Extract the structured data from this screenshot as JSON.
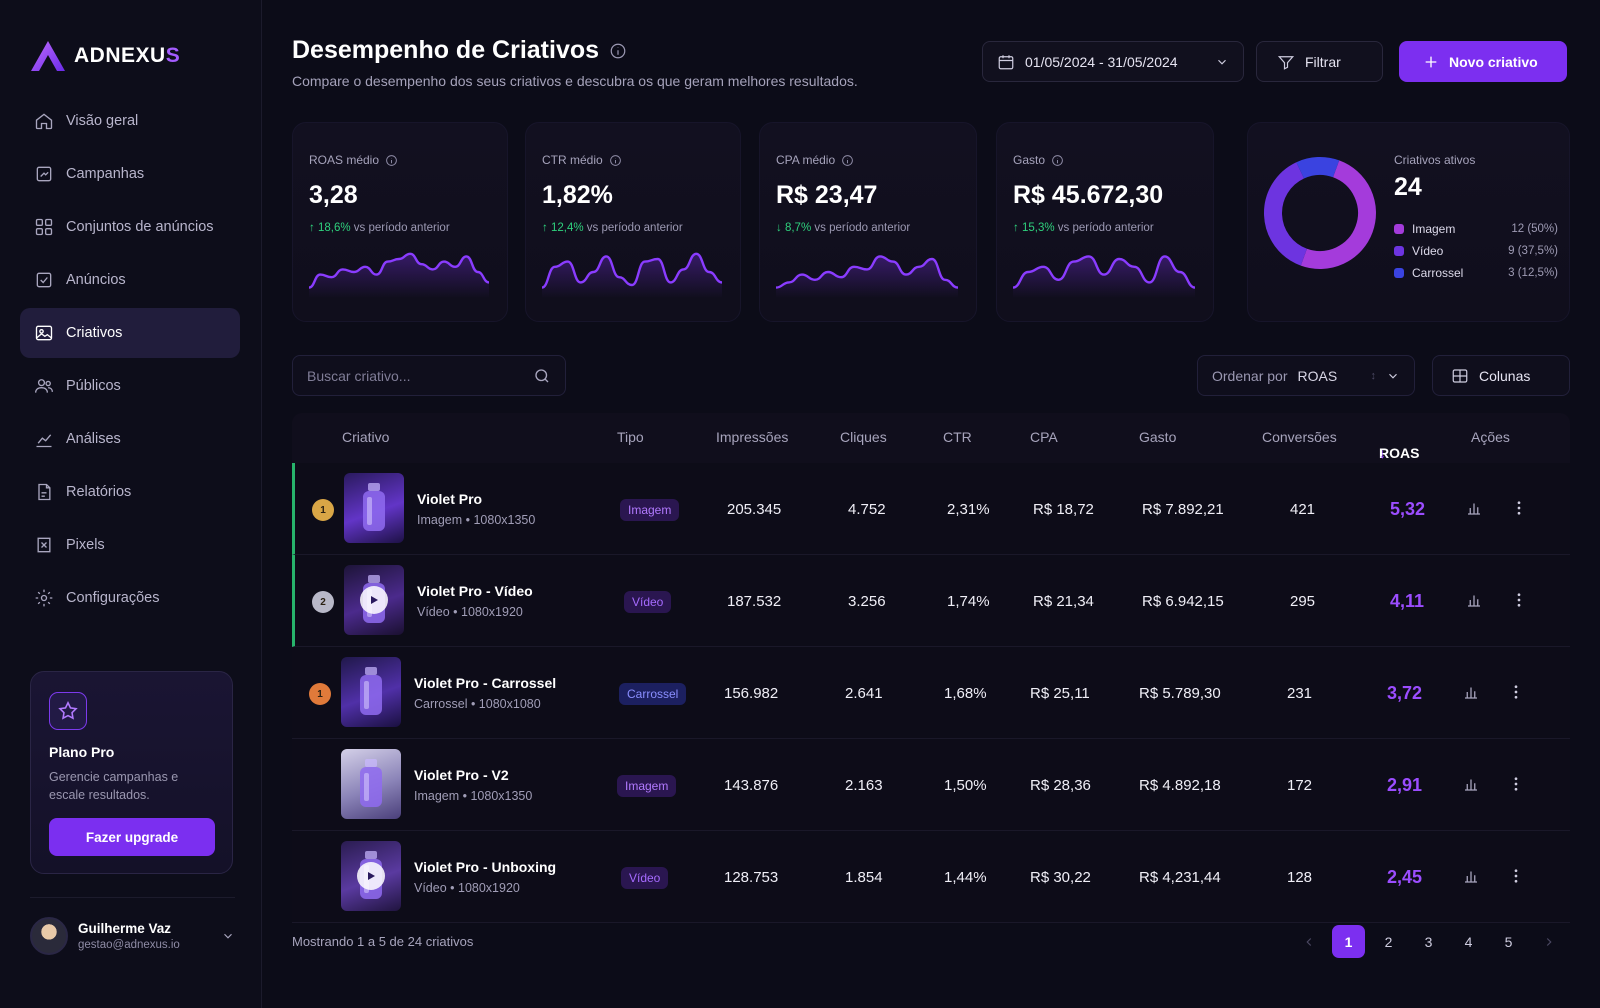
{
  "brand": {
    "name_main": "ADNEXU",
    "name_accent": "S"
  },
  "nav": [
    {
      "label": "Visão geral",
      "icon": "home-icon",
      "active": false
    },
    {
      "label": "Campanhas",
      "icon": "campaign-icon",
      "active": false
    },
    {
      "label": "Conjuntos de anúncios",
      "icon": "adsets-icon",
      "active": false
    },
    {
      "label": "Anúncios",
      "icon": "ads-icon",
      "active": false
    },
    {
      "label": "Criativos",
      "icon": "image-icon",
      "active": true
    },
    {
      "label": "Públicos",
      "icon": "users-icon",
      "active": false
    },
    {
      "label": "Análises",
      "icon": "chart-icon",
      "active": false
    },
    {
      "label": "Relatórios",
      "icon": "report-icon",
      "active": false
    },
    {
      "label": "Pixels",
      "icon": "pixel-icon",
      "active": false
    },
    {
      "label": "Configurações",
      "icon": "gear-icon",
      "active": false
    }
  ],
  "promo": {
    "title": "Plano Pro",
    "desc": "Gerencie campanhas e escale resultados.",
    "button": "Fazer upgrade"
  },
  "profile": {
    "name": "Guilherme Vaz",
    "email": "gestao@adnexus.io"
  },
  "header": {
    "title": "Desempenho de Criativos",
    "subtitle": "Compare o desempenho dos seus criativos e descubra os que geram melhores resultados.",
    "date_range": "01/05/2024 - 31/05/2024",
    "filter_label": "Filtrar",
    "new_label": "Novo criativo"
  },
  "kpis": [
    {
      "label": "ROAS médio",
      "value": "3,28",
      "delta": "18,6%",
      "dir": "up",
      "vs": "vs período anterior",
      "spark": [
        0.2,
        0.45,
        0.4,
        0.55,
        0.5,
        0.6,
        0.45,
        0.7,
        0.75,
        0.85,
        0.65,
        0.55,
        0.7,
        0.6,
        0.8,
        0.5,
        0.3
      ]
    },
    {
      "label": "CTR médio",
      "value": "1,82%",
      "delta": "12,4%",
      "dir": "up",
      "vs": "vs período anterior",
      "spark": [
        0.2,
        0.6,
        0.7,
        0.3,
        0.5,
        0.8,
        0.4,
        0.25,
        0.7,
        0.75,
        0.3,
        0.55,
        0.85,
        0.5,
        0.3
      ]
    },
    {
      "label": "CPA médio",
      "value": "R$ 23,47",
      "delta": "8,7%",
      "dir": "down",
      "vs": "vs período anterior",
      "spark": [
        0.2,
        0.3,
        0.45,
        0.35,
        0.5,
        0.4,
        0.6,
        0.55,
        0.8,
        0.7,
        0.45,
        0.6,
        0.75,
        0.35,
        0.2
      ]
    },
    {
      "label": "Gasto",
      "value": "R$ 45.672,30",
      "delta": "15,3%",
      "dir": "up",
      "vs": "vs período anterior",
      "spark": [
        0.2,
        0.5,
        0.6,
        0.35,
        0.7,
        0.8,
        0.45,
        0.75,
        0.6,
        0.3,
        0.8,
        0.5,
        0.2
      ]
    }
  ],
  "creatives_active": {
    "label": "Criativos ativos",
    "value": "24",
    "items": [
      {
        "label": "Imagem",
        "count": 12,
        "pct": "12 (50%)",
        "color": "#a43bdb"
      },
      {
        "label": "Vídeo",
        "count": 9,
        "pct": "9 (37,5%)",
        "color": "#6d34e0"
      },
      {
        "label": "Carrossel",
        "count": 3,
        "pct": "3 (12,5%)",
        "color": "#3a43e0"
      }
    ]
  },
  "toolbar": {
    "search_placeholder": "Buscar criativo...",
    "sort_label": "Ordenar por",
    "sort_value": "ROAS",
    "columns_label": "Colunas"
  },
  "table": {
    "headers": {
      "creative": "Criativo",
      "type": "Tipo",
      "impr": "Impressões",
      "clicks": "Cliques",
      "ctr": "CTR",
      "cpa": "CPA",
      "spend": "Gasto",
      "conv": "Conversões",
      "roas": "ROAS",
      "actions": "Ações"
    },
    "rows": [
      {
        "rank": "1",
        "name": "Violet Pro",
        "meta": "Imagem • 1080x1350",
        "type": "Imagem",
        "kind": "img",
        "impr": "205.345",
        "clicks": "4.752",
        "ctr": "2,31%",
        "cpa": "R$ 18,72",
        "spend": "R$ 7.892,21",
        "conv": "421",
        "roas": "5,32"
      },
      {
        "rank": "2",
        "name": "Violet Pro - Vídeo",
        "meta": "Vídeo • 1080x1920",
        "type": "Vídeo",
        "kind": "vid",
        "impr": "187.532",
        "clicks": "3.256",
        "ctr": "1,74%",
        "cpa": "R$ 21,34",
        "spend": "R$ 6.942,15",
        "conv": "295",
        "roas": "4,11"
      },
      {
        "rank": "1",
        "name": "Violet Pro - Carrossel",
        "meta": "Carrossel • 1080x1080",
        "type": "Carrossel",
        "kind": "car",
        "impr": "156.982",
        "clicks": "2.641",
        "ctr": "1,68%",
        "cpa": "R$ 25,11",
        "spend": "R$ 5.789,30",
        "conv": "231",
        "roas": "3,72"
      },
      {
        "rank": "",
        "name": "Violet Pro - V2",
        "meta": "Imagem • 1080x1350",
        "type": "Imagem",
        "kind": "img",
        "impr": "143.876",
        "clicks": "2.163",
        "ctr": "1,50%",
        "cpa": "R$ 28,36",
        "spend": "R$ 4.892,18",
        "conv": "172",
        "roas": "2,91"
      },
      {
        "rank": "",
        "name": "Violet Pro - Unboxing",
        "meta": "Vídeo • 1080x1920",
        "type": "Vídeo",
        "kind": "vid",
        "impr": "128.753",
        "clicks": "1.854",
        "ctr": "1,44%",
        "cpa": "R$ 30,22",
        "spend": "R$ 4,231,44",
        "conv": "128",
        "roas": "2,45"
      }
    ]
  },
  "footer": {
    "showing": "Mostrando 1 a 5 de 24 criativos",
    "pages": [
      "1",
      "2",
      "3",
      "4",
      "5"
    ],
    "current": "1"
  }
}
